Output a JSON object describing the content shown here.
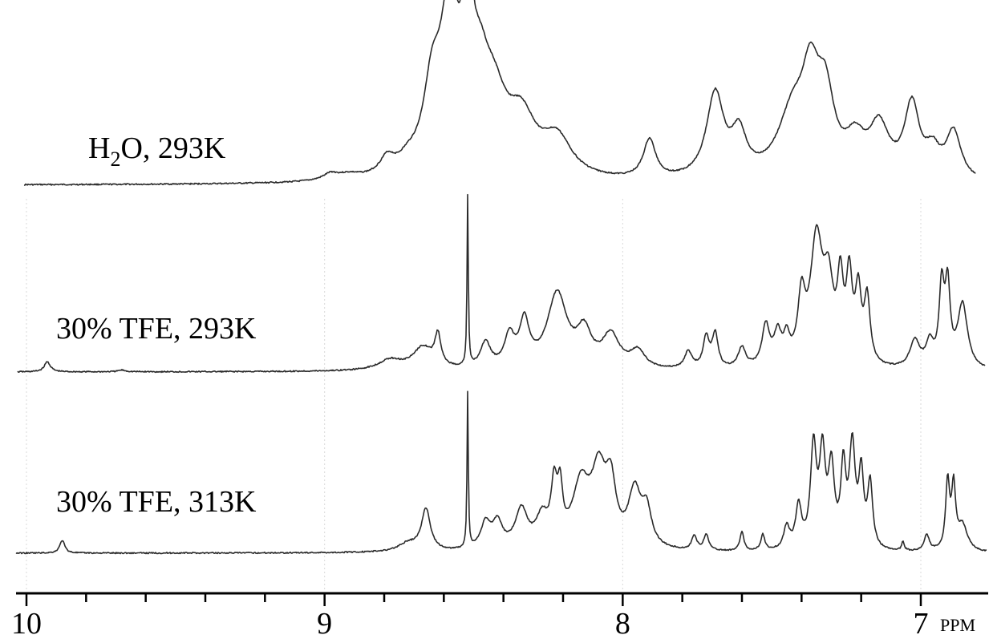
{
  "chart_data": {
    "type": "line",
    "title": "",
    "xlabel": "PPM",
    "ylabel": "",
    "xlim": [
      10.0,
      6.85
    ],
    "x_reversed": true,
    "grid": true,
    "x_ticks": [
      10,
      9,
      8,
      7
    ],
    "x_tick_labels": [
      "10",
      "9",
      "8",
      "7"
    ],
    "legend": "none",
    "series": [
      {
        "name": "H2O, 293K",
        "label_main": "H",
        "label_sub": "2",
        "label_rest": "O, 293K",
        "peaks": [
          {
            "ppm": 8.98,
            "height": 0.03,
            "width": 0.03
          },
          {
            "ppm": 8.92,
            "height": 0.025,
            "width": 0.05
          },
          {
            "ppm": 8.79,
            "height": 0.08,
            "width": 0.03
          },
          {
            "ppm": 8.72,
            "height": 0.05,
            "width": 0.04
          },
          {
            "ppm": 8.64,
            "height": 0.35,
            "width": 0.035
          },
          {
            "ppm": 8.58,
            "height": 0.78,
            "width": 0.04
          },
          {
            "ppm": 8.52,
            "height": 0.9,
            "width": 0.015
          },
          {
            "ppm": 8.48,
            "height": 0.38,
            "width": 0.04
          },
          {
            "ppm": 8.43,
            "height": 0.28,
            "width": 0.05
          },
          {
            "ppm": 8.34,
            "height": 0.26,
            "width": 0.06
          },
          {
            "ppm": 8.22,
            "height": 0.18,
            "width": 0.06
          },
          {
            "ppm": 7.91,
            "height": 0.19,
            "width": 0.025
          },
          {
            "ppm": 7.69,
            "height": 0.41,
            "width": 0.035
          },
          {
            "ppm": 7.61,
            "height": 0.2,
            "width": 0.03
          },
          {
            "ppm": 7.43,
            "height": 0.3,
            "width": 0.06
          },
          {
            "ppm": 7.37,
            "height": 0.4,
            "width": 0.035
          },
          {
            "ppm": 7.32,
            "height": 0.35,
            "width": 0.035
          },
          {
            "ppm": 7.22,
            "height": 0.16,
            "width": 0.04
          },
          {
            "ppm": 7.14,
            "height": 0.24,
            "width": 0.04
          },
          {
            "ppm": 7.03,
            "height": 0.35,
            "width": 0.03
          },
          {
            "ppm": 6.96,
            "height": 0.12,
            "width": 0.03
          },
          {
            "ppm": 6.89,
            "height": 0.23,
            "width": 0.03
          }
        ]
      },
      {
        "name": "30% TFE, 293K",
        "peaks": [
          {
            "ppm": 9.93,
            "height": 0.06,
            "width": 0.012
          },
          {
            "ppm": 9.68,
            "height": 0.01,
            "width": 0.015
          },
          {
            "ppm": 8.78,
            "height": 0.06,
            "width": 0.05
          },
          {
            "ppm": 8.67,
            "height": 0.13,
            "width": 0.04
          },
          {
            "ppm": 8.62,
            "height": 0.18,
            "width": 0.012
          },
          {
            "ppm": 8.52,
            "height": 1.0,
            "width": 0.0025
          },
          {
            "ppm": 8.46,
            "height": 0.15,
            "width": 0.02
          },
          {
            "ppm": 8.38,
            "height": 0.18,
            "width": 0.02
          },
          {
            "ppm": 8.33,
            "height": 0.26,
            "width": 0.02
          },
          {
            "ppm": 8.22,
            "height": 0.44,
            "width": 0.04
          },
          {
            "ppm": 8.13,
            "height": 0.2,
            "width": 0.03
          },
          {
            "ppm": 8.04,
            "height": 0.19,
            "width": 0.035
          },
          {
            "ppm": 7.95,
            "height": 0.1,
            "width": 0.03
          },
          {
            "ppm": 7.78,
            "height": 0.1,
            "width": 0.015
          },
          {
            "ppm": 7.72,
            "height": 0.18,
            "width": 0.012
          },
          {
            "ppm": 7.69,
            "height": 0.2,
            "width": 0.012
          },
          {
            "ppm": 7.6,
            "height": 0.12,
            "width": 0.015
          },
          {
            "ppm": 7.52,
            "height": 0.24,
            "width": 0.015
          },
          {
            "ppm": 7.48,
            "height": 0.18,
            "width": 0.015
          },
          {
            "ppm": 7.45,
            "height": 0.14,
            "width": 0.012
          },
          {
            "ppm": 7.4,
            "height": 0.36,
            "width": 0.015
          },
          {
            "ppm": 7.35,
            "height": 0.72,
            "width": 0.025
          },
          {
            "ppm": 7.31,
            "height": 0.42,
            "width": 0.02
          },
          {
            "ppm": 7.27,
            "height": 0.44,
            "width": 0.012
          },
          {
            "ppm": 7.24,
            "height": 0.48,
            "width": 0.012
          },
          {
            "ppm": 7.21,
            "height": 0.4,
            "width": 0.012
          },
          {
            "ppm": 7.18,
            "height": 0.38,
            "width": 0.012
          },
          {
            "ppm": 7.02,
            "height": 0.16,
            "width": 0.02
          },
          {
            "ppm": 6.97,
            "height": 0.14,
            "width": 0.015
          },
          {
            "ppm": 6.93,
            "height": 0.46,
            "width": 0.01
          },
          {
            "ppm": 6.91,
            "height": 0.45,
            "width": 0.01
          },
          {
            "ppm": 6.86,
            "height": 0.38,
            "width": 0.02
          }
        ]
      },
      {
        "name": "30% TFE, 313K",
        "peaks": [
          {
            "ppm": 9.88,
            "height": 0.08,
            "width": 0.01
          },
          {
            "ppm": 8.72,
            "height": 0.05,
            "width": 0.04
          },
          {
            "ppm": 8.66,
            "height": 0.26,
            "width": 0.018
          },
          {
            "ppm": 8.52,
            "height": 0.97,
            "width": 0.0025
          },
          {
            "ppm": 8.46,
            "height": 0.16,
            "width": 0.02
          },
          {
            "ppm": 8.42,
            "height": 0.16,
            "width": 0.02
          },
          {
            "ppm": 8.34,
            "height": 0.24,
            "width": 0.025
          },
          {
            "ppm": 8.27,
            "height": 0.18,
            "width": 0.025
          },
          {
            "ppm": 8.23,
            "height": 0.34,
            "width": 0.012
          },
          {
            "ppm": 8.21,
            "height": 0.3,
            "width": 0.01
          },
          {
            "ppm": 8.14,
            "height": 0.38,
            "width": 0.035
          },
          {
            "ppm": 8.08,
            "height": 0.44,
            "width": 0.03
          },
          {
            "ppm": 8.04,
            "height": 0.34,
            "width": 0.02
          },
          {
            "ppm": 7.96,
            "height": 0.34,
            "width": 0.025
          },
          {
            "ppm": 7.92,
            "height": 0.22,
            "width": 0.02
          },
          {
            "ppm": 7.76,
            "height": 0.09,
            "width": 0.01
          },
          {
            "ppm": 7.72,
            "height": 0.1,
            "width": 0.01
          },
          {
            "ppm": 7.6,
            "height": 0.12,
            "width": 0.008
          },
          {
            "ppm": 7.53,
            "height": 0.1,
            "width": 0.008
          },
          {
            "ppm": 7.45,
            "height": 0.14,
            "width": 0.012
          },
          {
            "ppm": 7.41,
            "height": 0.26,
            "width": 0.012
          },
          {
            "ppm": 7.36,
            "height": 0.62,
            "width": 0.012
          },
          {
            "ppm": 7.33,
            "height": 0.56,
            "width": 0.012
          },
          {
            "ppm": 7.3,
            "height": 0.48,
            "width": 0.012
          },
          {
            "ppm": 7.26,
            "height": 0.48,
            "width": 0.01
          },
          {
            "ppm": 7.23,
            "height": 0.62,
            "width": 0.012
          },
          {
            "ppm": 7.2,
            "height": 0.44,
            "width": 0.01
          },
          {
            "ppm": 7.17,
            "height": 0.4,
            "width": 0.01
          },
          {
            "ppm": 7.06,
            "height": 0.06,
            "width": 0.005
          },
          {
            "ppm": 6.98,
            "height": 0.1,
            "width": 0.01
          },
          {
            "ppm": 6.91,
            "height": 0.42,
            "width": 0.008
          },
          {
            "ppm": 6.89,
            "height": 0.38,
            "width": 0.008
          },
          {
            "ppm": 6.86,
            "height": 0.16,
            "width": 0.02
          }
        ]
      }
    ]
  }
}
